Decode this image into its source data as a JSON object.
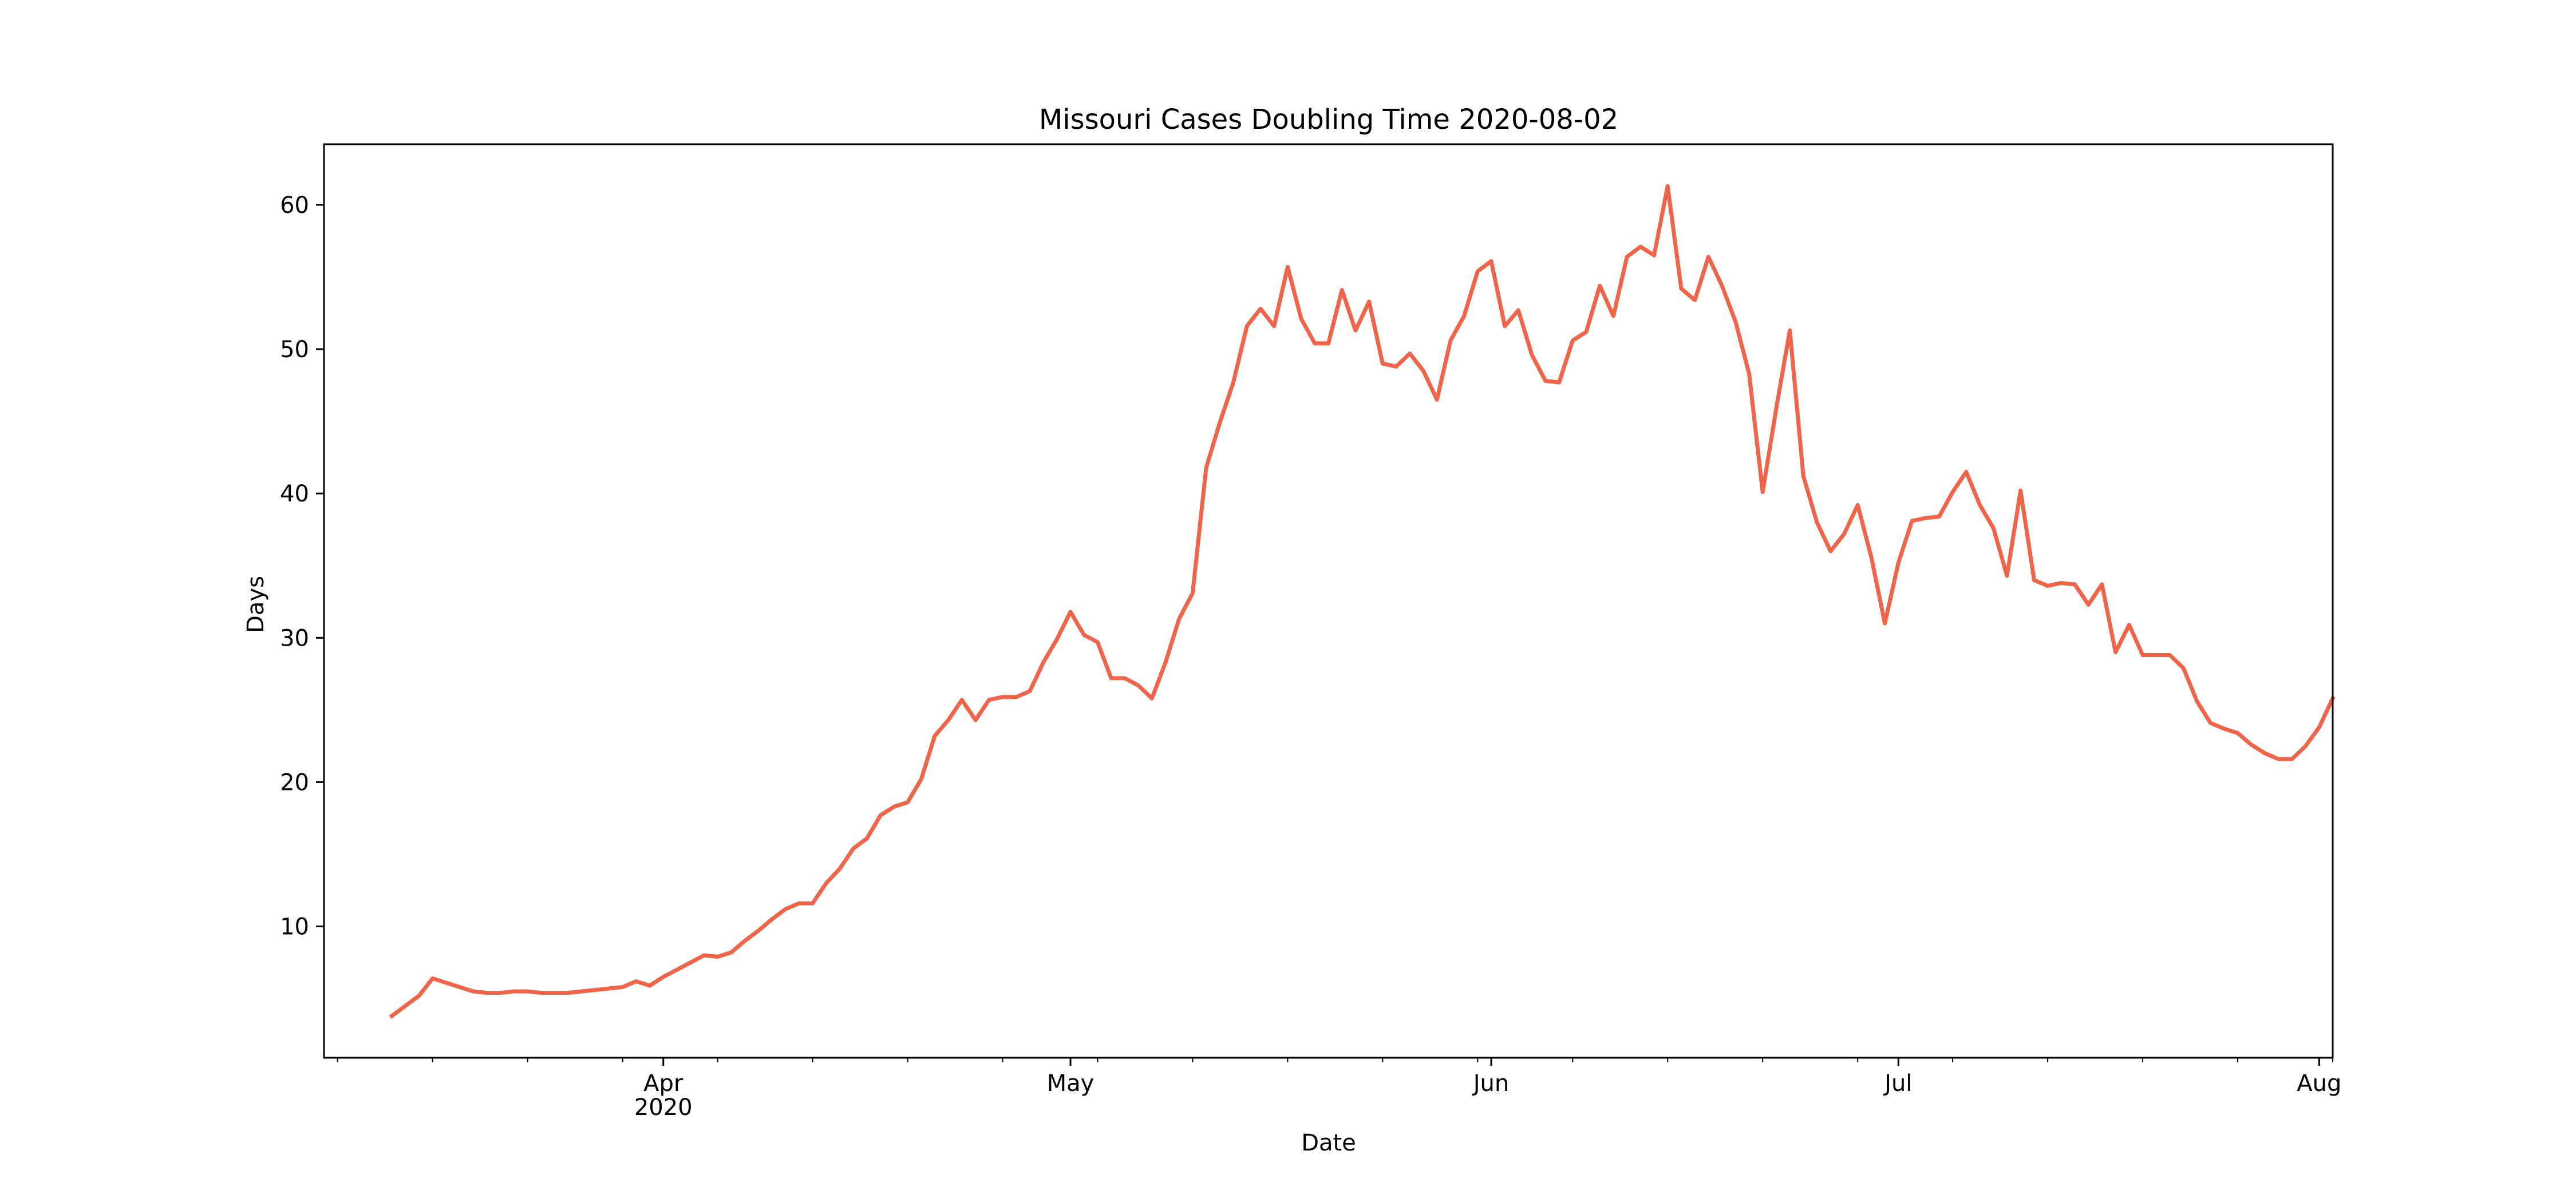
{
  "chart_data": {
    "type": "line",
    "title": "Missouri Cases Doubling Time 2020-08-02",
    "xlabel": "Date",
    "ylabel": "Days",
    "xlim": [
      "2020-03-07",
      "2020-08-02"
    ],
    "ylim": [
      0.9,
      64.2
    ],
    "grid": false,
    "color": "#f0644a",
    "x_ticks": [
      {
        "date": "2020-04-01",
        "label": "Apr",
        "sublabel": "2020"
      },
      {
        "date": "2020-05-01",
        "label": "May",
        "sublabel": ""
      },
      {
        "date": "2020-06-01",
        "label": "Jun",
        "sublabel": ""
      },
      {
        "date": "2020-07-01",
        "label": "Jul",
        "sublabel": ""
      },
      {
        "date": "2020-08-01",
        "label": "Aug",
        "sublabel": ""
      }
    ],
    "y_ticks": [
      10,
      20,
      30,
      40,
      50,
      60
    ],
    "series": [
      {
        "start_date": "2020-03-12",
        "values": [
          3.8,
          4.5,
          5.2,
          6.4,
          6.1,
          5.8,
          5.5,
          5.4,
          5.4,
          5.5,
          5.5,
          5.4,
          5.4,
          5.4,
          5.5,
          5.6,
          5.7,
          5.8,
          6.2,
          5.9,
          6.5,
          7.0,
          7.5,
          8.0,
          7.9,
          8.2,
          9.0,
          9.7,
          10.5,
          11.2,
          11.6,
          11.6,
          13.0,
          14.0,
          15.4,
          16.1,
          17.7,
          18.3,
          18.6,
          20.2,
          23.2,
          24.3,
          25.7,
          24.3,
          25.7,
          25.9,
          25.9,
          26.3,
          28.3,
          29.9,
          31.8,
          30.2,
          29.7,
          27.2,
          27.2,
          26.7,
          25.8,
          28.3,
          31.3,
          33.1,
          41.8,
          44.9,
          47.7,
          51.6,
          52.8,
          51.6,
          55.7,
          52.1,
          50.4,
          50.4,
          54.1,
          51.3,
          53.3,
          49.0,
          48.8,
          49.7,
          48.5,
          46.5,
          50.6,
          52.3,
          55.4,
          56.1,
          51.6,
          52.7,
          49.6,
          47.8,
          47.7,
          50.6,
          51.2,
          54.4,
          52.3,
          56.4,
          57.1,
          56.5,
          61.3,
          54.2,
          53.4,
          56.4,
          54.4,
          51.9,
          48.3,
          40.1,
          45.9,
          51.3,
          41.2,
          38.0,
          36.0,
          37.2,
          39.2,
          35.6,
          31.0,
          35.2,
          38.1,
          38.3,
          38.4,
          40.1,
          41.5,
          39.2,
          37.6,
          34.3,
          40.2,
          34.0,
          33.6,
          33.8,
          33.7,
          32.3,
          33.7,
          29.0,
          30.9,
          28.8,
          28.8,
          28.8,
          27.9,
          25.6,
          24.1,
          23.7,
          23.4,
          22.6,
          22.0,
          21.6,
          21.6,
          22.5,
          23.8,
          25.8
        ]
      }
    ]
  }
}
